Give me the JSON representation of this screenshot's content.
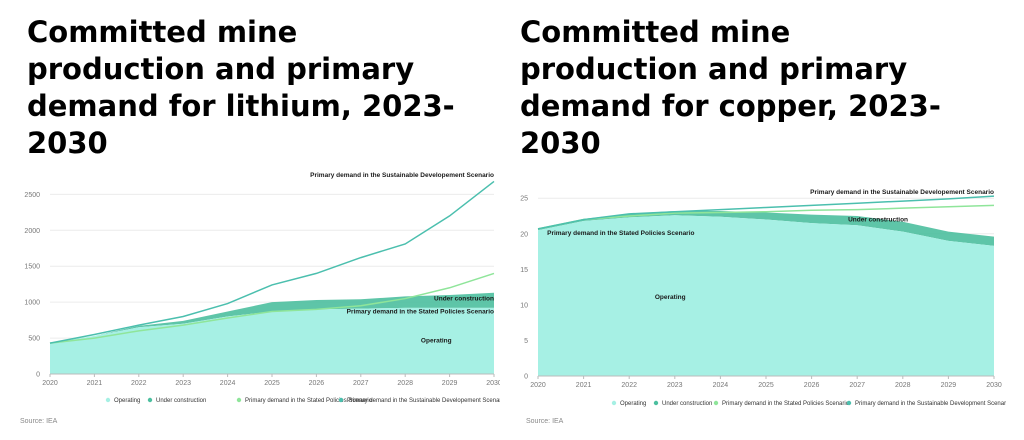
{
  "source_label": "Source: IEA",
  "chart_data": [
    {
      "id": "lithium",
      "type": "area",
      "title": "Committed mine production and primary demand for lithium, 2023-2030",
      "x": [
        2020,
        2021,
        2022,
        2023,
        2024,
        2025,
        2026,
        2027,
        2028,
        2029,
        2030
      ],
      "ylim": [
        0,
        2700
      ],
      "yticks": [
        0,
        500,
        1000,
        1500,
        2000,
        2500
      ],
      "grid": true,
      "legend_position": "bottom",
      "colors": {
        "operating": "#a6f0e4",
        "under_construction": "#4cbf9f",
        "steps": "#8fe59a",
        "sds": "#4bbfae"
      },
      "series": [
        {
          "name": "Operating",
          "kind": "area",
          "values": [
            430,
            530,
            650,
            700,
            800,
            870,
            900,
            910,
            920,
            920,
            920
          ]
        },
        {
          "name": "Under construction",
          "kind": "area-stacked",
          "values": [
            0,
            0,
            20,
            40,
            70,
            130,
            130,
            130,
            160,
            180,
            210
          ]
        },
        {
          "name": "Primary demand in the Stated Policies Scenario",
          "kind": "line",
          "values": [
            430,
            500,
            600,
            680,
            780,
            870,
            900,
            950,
            1050,
            1200,
            1400
          ]
        },
        {
          "name": "Primary demand in the Sustainable Developement Scenario",
          "kind": "line",
          "values": [
            430,
            550,
            680,
            800,
            980,
            1240,
            1400,
            1620,
            1810,
            2200,
            2680
          ]
        }
      ],
      "annotations": [
        {
          "text": "Primary demand in the Sustainable Developement Scenario",
          "x": 2030,
          "y": 2740,
          "anchor": "end"
        },
        {
          "text": "Under construction",
          "x": 2030,
          "y": 1020,
          "anchor": "end"
        },
        {
          "text": "Primary demand in the Stated Policies Scenario",
          "x": 2030,
          "y": 840,
          "anchor": "end"
        },
        {
          "text": "Operating",
          "x": 2028.7,
          "y": 440,
          "anchor": "middle"
        }
      ]
    },
    {
      "id": "copper",
      "type": "area",
      "title": "Committed mine production and primary demand for copper, 2023-2030",
      "x": [
        2020,
        2021,
        2022,
        2023,
        2024,
        2025,
        2026,
        2027,
        2028,
        2029,
        2030
      ],
      "ylim": [
        0,
        27
      ],
      "yticks": [
        0,
        5,
        10,
        15,
        20,
        25
      ],
      "grid": true,
      "legend_position": "bottom",
      "colors": {
        "operating": "#a6f0e4",
        "under_construction": "#4cbf9f",
        "steps": "#8fe59a",
        "sds": "#4bbfae"
      },
      "series": [
        {
          "name": "Operating",
          "kind": "area",
          "values": [
            20.5,
            21.8,
            22.3,
            22.6,
            22.4,
            22.0,
            21.5,
            21.2,
            20.3,
            19.0,
            18.3
          ]
        },
        {
          "name": "Under construction",
          "kind": "area-stacked",
          "values": [
            0.1,
            0.3,
            0.5,
            0.6,
            0.8,
            1.0,
            1.2,
            1.3,
            1.4,
            1.3,
            1.3
          ]
        },
        {
          "name": "Primary demand in the Stated Policies Scenario",
          "kind": "line",
          "values": [
            20.7,
            22.0,
            22.5,
            22.9,
            23.0,
            23.1,
            23.3,
            23.4,
            23.6,
            23.8,
            24.0
          ]
        },
        {
          "name": "Primary demand in the Sustainable Development Scenario",
          "kind": "line",
          "values": [
            20.7,
            22.0,
            22.8,
            23.1,
            23.4,
            23.7,
            24.0,
            24.3,
            24.6,
            24.9,
            25.3
          ]
        }
      ],
      "annotations": [
        {
          "text": "Primary demand in the Sustainable Developement Scenario",
          "x": 2030,
          "y": 25.6,
          "anchor": "end"
        },
        {
          "text": "Under construction",
          "x": 2026.8,
          "y": 21.7,
          "anchor": "start"
        },
        {
          "text": "Primary demand in the Stated Policies Scenario",
          "x": 2020.2,
          "y": 19.8,
          "anchor": "start"
        },
        {
          "text": "Operating",
          "x": 2022.9,
          "y": 10.8,
          "anchor": "middle"
        }
      ]
    }
  ]
}
